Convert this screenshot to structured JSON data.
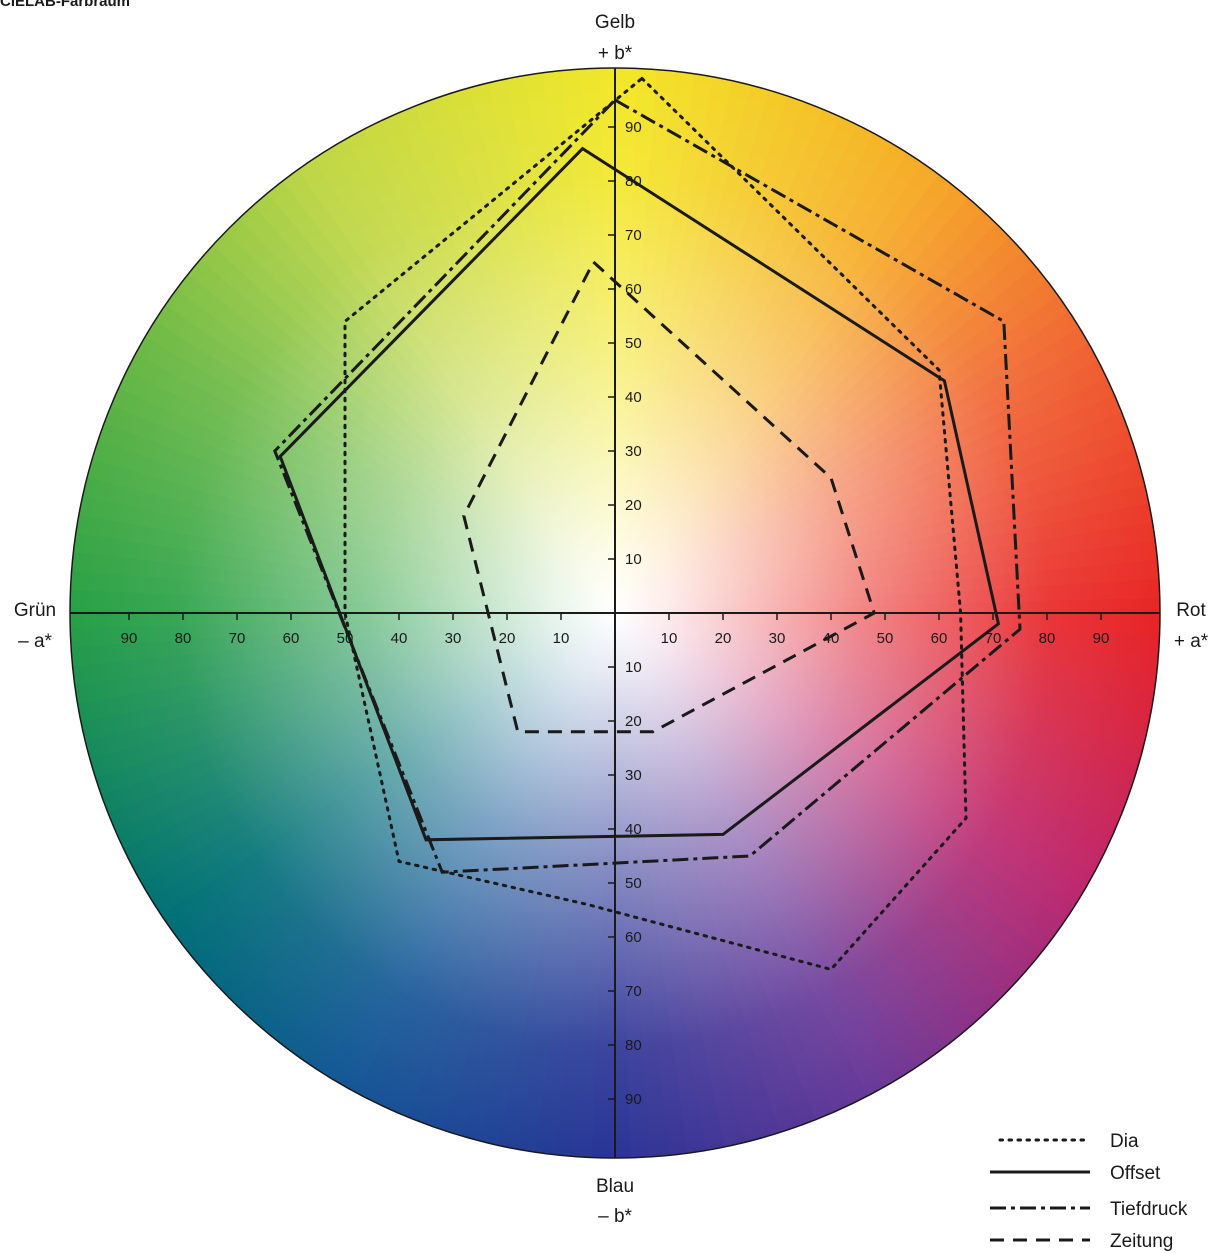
{
  "title": "CIELAB-Farbraum",
  "chart_data": {
    "type": "radar",
    "title": "CIELAB-Farbraum",
    "axes": {
      "up": [
        "Gelb",
        "+ b*"
      ],
      "down": [
        "Blau",
        "– b*"
      ],
      "left": [
        "Grün",
        "– a*"
      ],
      "right": [
        "Rot",
        "+ a*"
      ]
    },
    "x_range": [
      -100,
      100
    ],
    "y_range": [
      -100,
      100
    ],
    "x_ticks": [
      10,
      20,
      30,
      40,
      50,
      60,
      70,
      80,
      90
    ],
    "y_ticks": [
      10,
      20,
      30,
      40,
      50,
      60,
      70,
      80,
      90
    ],
    "x_tick_labels": [
      "10",
      "20",
      "30",
      "40",
      "50",
      "60",
      "70",
      "80",
      "90"
    ],
    "y_tick_labels": [
      "10",
      "20",
      "30",
      "40",
      "50",
      "60",
      "70",
      "80",
      "90"
    ],
    "legend_position": "bottom-right",
    "series": [
      {
        "name": "Dia",
        "style": "dotted",
        "points": [
          [
            5,
            99
          ],
          [
            60,
            45
          ],
          [
            64,
            0
          ],
          [
            65,
            -38
          ],
          [
            40,
            -66
          ],
          [
            -5,
            -54
          ],
          [
            -40,
            -46
          ],
          [
            -50,
            0
          ],
          [
            -50,
            30
          ],
          [
            -50,
            54
          ]
        ]
      },
      {
        "name": "Offset",
        "style": "solid",
        "points": [
          [
            -6,
            86
          ],
          [
            61,
            43
          ],
          [
            71,
            -2
          ],
          [
            20,
            -41
          ],
          [
            -35,
            -42
          ],
          [
            -62,
            29
          ]
        ]
      },
      {
        "name": "Tiefdruck",
        "style": "dashdot",
        "points": [
          [
            0,
            95
          ],
          [
            72,
            54
          ],
          [
            75,
            -3
          ],
          [
            25,
            -45
          ],
          [
            -32,
            -48
          ],
          [
            -63,
            30
          ]
        ]
      },
      {
        "name": "Zeitung",
        "style": "dashed",
        "points": [
          [
            -4,
            65
          ],
          [
            40,
            25
          ],
          [
            48,
            0
          ],
          [
            7,
            -22
          ],
          [
            -18,
            -22
          ],
          [
            -28,
            18
          ]
        ]
      }
    ]
  }
}
